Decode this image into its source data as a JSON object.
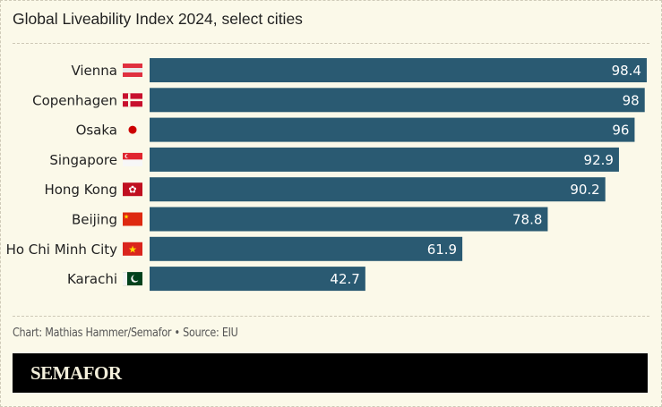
{
  "title": "Global Liveability Index 2024, select cities",
  "credit": "Chart: Mathias Hammer/Semafor • Source: EIU",
  "brand": "SEMAFOR",
  "colors": {
    "bar": "#2a5a72",
    "label": "#222222",
    "value": "#ffffff",
    "background": "#fbf9e9"
  },
  "chart_data": {
    "type": "bar",
    "orientation": "horizontal",
    "title": "Global Liveability Index 2024, select cities",
    "xlabel": "",
    "ylabel": "",
    "xlim": [
      0,
      100
    ],
    "grid": false,
    "categories": [
      "Vienna",
      "Copenhagen",
      "Osaka",
      "Singapore",
      "Hong Kong",
      "Beijing",
      "Ho Chi Minh City",
      "Karachi"
    ],
    "values": [
      98.4,
      98,
      96,
      92.9,
      90.2,
      78.8,
      61.9,
      42.7
    ],
    "value_labels": [
      "98.4",
      "98",
      "96",
      "92.9",
      "90.2",
      "78.8",
      "61.9",
      "42.7"
    ],
    "flags": [
      "austria",
      "denmark",
      "japan",
      "singapore",
      "hong-kong",
      "china",
      "vietnam",
      "pakistan"
    ]
  }
}
